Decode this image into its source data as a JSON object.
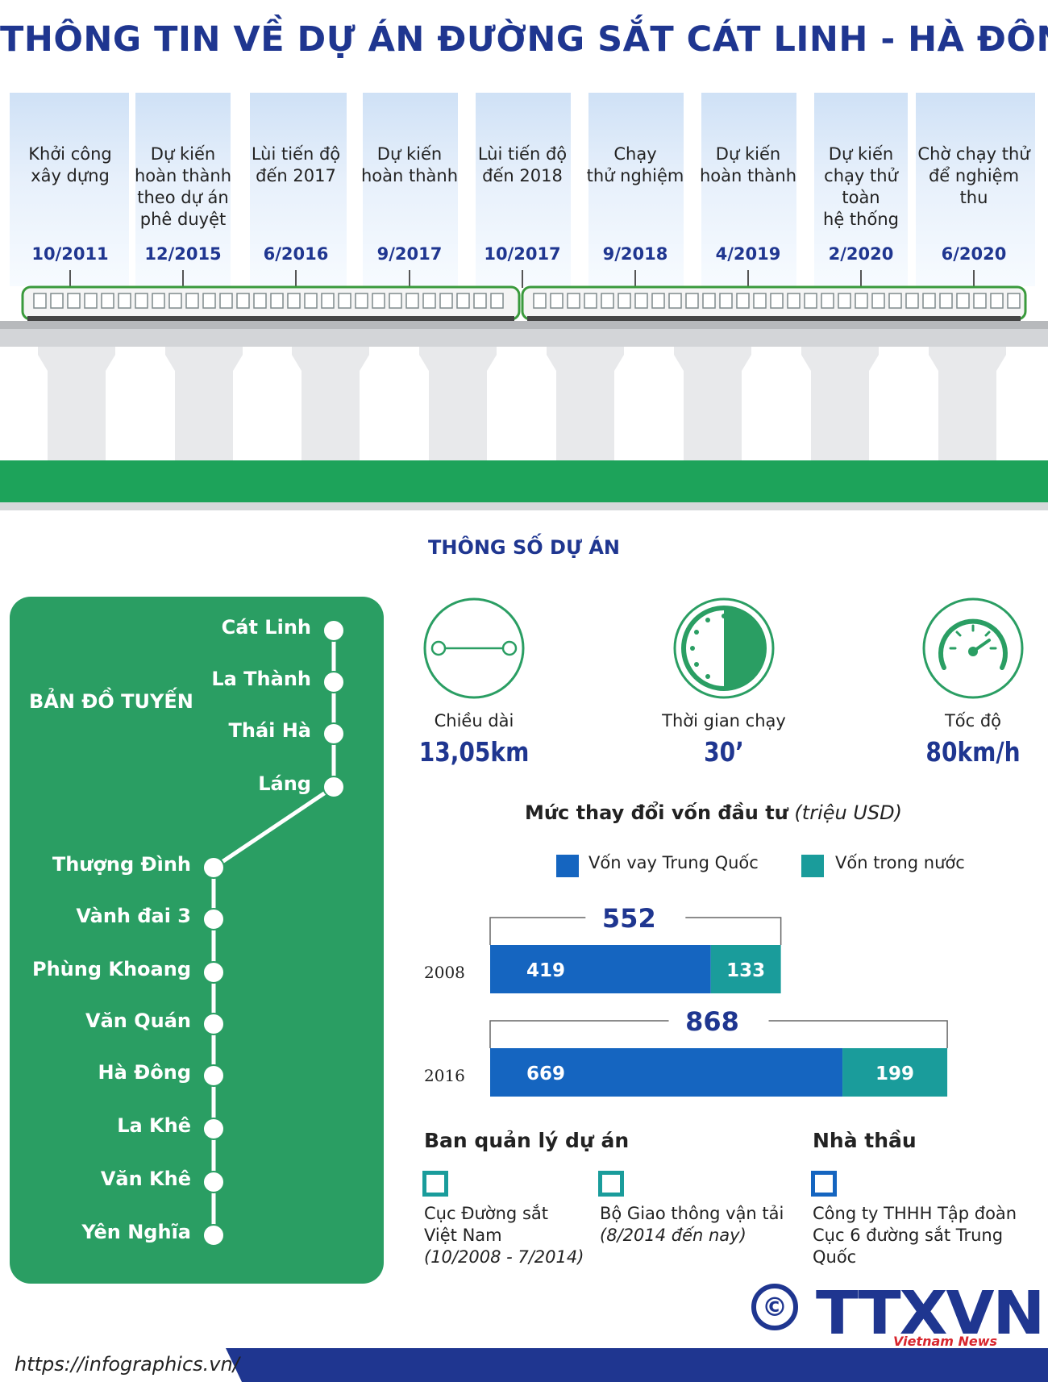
{
  "title": "THÔNG  TIN VỀ DỰ ÁN ĐƯỜNG SẮT CÁT LINH - HÀ ĐÔNG",
  "timeline": [
    {
      "desc": "Khởi công\nxây dựng",
      "date": "10/2011"
    },
    {
      "desc": "Dự kiến\nhoàn thành\ntheo dự án\nphê duyệt",
      "date": "12/2015"
    },
    {
      "desc": "Lùi tiến độ\nđến 2017",
      "date": "6/2016"
    },
    {
      "desc": "Dự kiến\nhoàn thành",
      "date": "9/2017"
    },
    {
      "desc": "Lùi tiến độ\nđến 2018",
      "date": "10/2017"
    },
    {
      "desc": "Chạy\nthử nghiệm",
      "date": "9/2018"
    },
    {
      "desc": "Dự kiến\nhoàn thành",
      "date": "4/2019"
    },
    {
      "desc": "Dự kiến\nchạy thử\ntoàn\nhệ thống",
      "date": "2/2020"
    },
    {
      "desc": "Chờ chạy thử\nđể nghiệm thu",
      "date": "6/2020"
    }
  ],
  "params_title": "THÔNG SỐ DỰ ÁN",
  "route_map": {
    "title": "BẢN ĐỒ TUYẾN",
    "stations": [
      "Cát Linh",
      "La Thành",
      "Thái Hà",
      "Láng",
      "Thượng Đình",
      "Vành đai 3",
      "Phùng Khoang",
      "Văn Quán",
      "Hà Đông",
      "La Khê",
      "Văn Khê",
      "Yên Nghĩa"
    ]
  },
  "params": [
    {
      "label": "Chiều dài",
      "value": "13,05km",
      "icon": "distance-icon"
    },
    {
      "label": "Thời gian chạy",
      "value": "30’",
      "icon": "clock-icon"
    },
    {
      "label": "Tốc độ",
      "value": "80km/h",
      "icon": "speedometer-icon"
    }
  ],
  "chart_title_bold": "Mức thay đổi vốn đầu tư",
  "chart_title_unit": "(triệu USD)",
  "chart_data": {
    "type": "bar",
    "orientation": "horizontal",
    "stacked": true,
    "title": "Mức thay đổi vốn đầu tư (triệu USD)",
    "categories": [
      "2008",
      "2016"
    ],
    "series": [
      {
        "name": "Vốn vay Trung Quốc",
        "values": [
          419,
          669
        ],
        "color": "#1565c0"
      },
      {
        "name": "Vốn trong nước",
        "values": [
          133,
          199
        ],
        "color": "#1a9c9b"
      }
    ],
    "totals": [
      552,
      868
    ],
    "legend_position": "top"
  },
  "mgmt_title": "Ban quản lý dự án",
  "mgmt": [
    {
      "name": "Cục Đường sắt\nViệt Nam",
      "period": "(10/2008 - 7/2014)"
    },
    {
      "name": "Bộ Giao thông vận tải",
      "period": "(8/2014 đến nay)"
    }
  ],
  "contractor_title": "Nhà thầu",
  "contractor": {
    "name": "Công ty THHH Tập đoàn\nCục 6 đường sắt Trung Quốc"
  },
  "logo": {
    "copyright": "©",
    "brand": "TTXVN",
    "sub": "Vietnam News Agency"
  },
  "footer_url": "https://infographics.vn/",
  "colors": {
    "navy": "#1f3690",
    "green": "#2a9e63",
    "teal": "#1a9c9b",
    "blue": "#1565c0"
  }
}
